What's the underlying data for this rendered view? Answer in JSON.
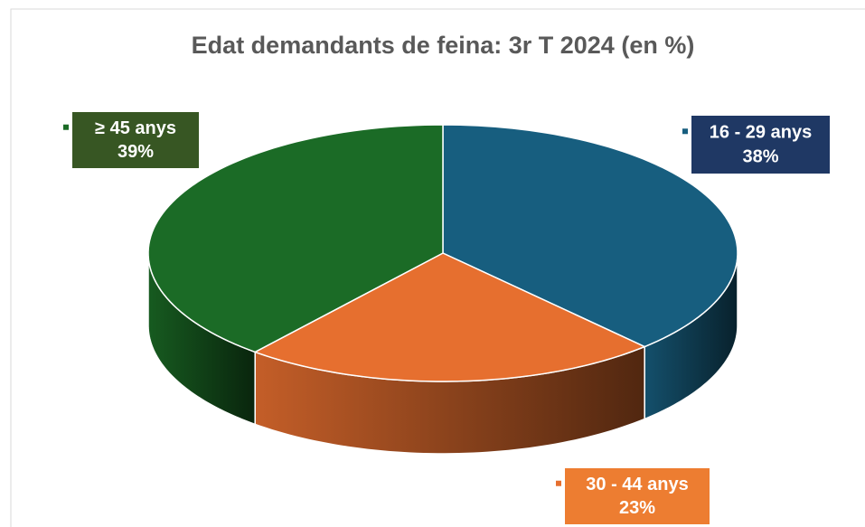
{
  "chart_data": {
    "type": "pie",
    "title": "Edat demandants de feina: 3r T 2024 (en %)",
    "categories": [
      "16 - 29 anys",
      "30 - 44 anys",
      "≥ 45 anys"
    ],
    "values": [
      38,
      23,
      39
    ],
    "value_labels": [
      "38%",
      "23%",
      "39%"
    ],
    "colors": [
      "#175e7f",
      "#e66f2f",
      "#1b6b26"
    ],
    "label_colors": [
      "#1f3864",
      "#ed7d31",
      "#375623"
    ]
  }
}
